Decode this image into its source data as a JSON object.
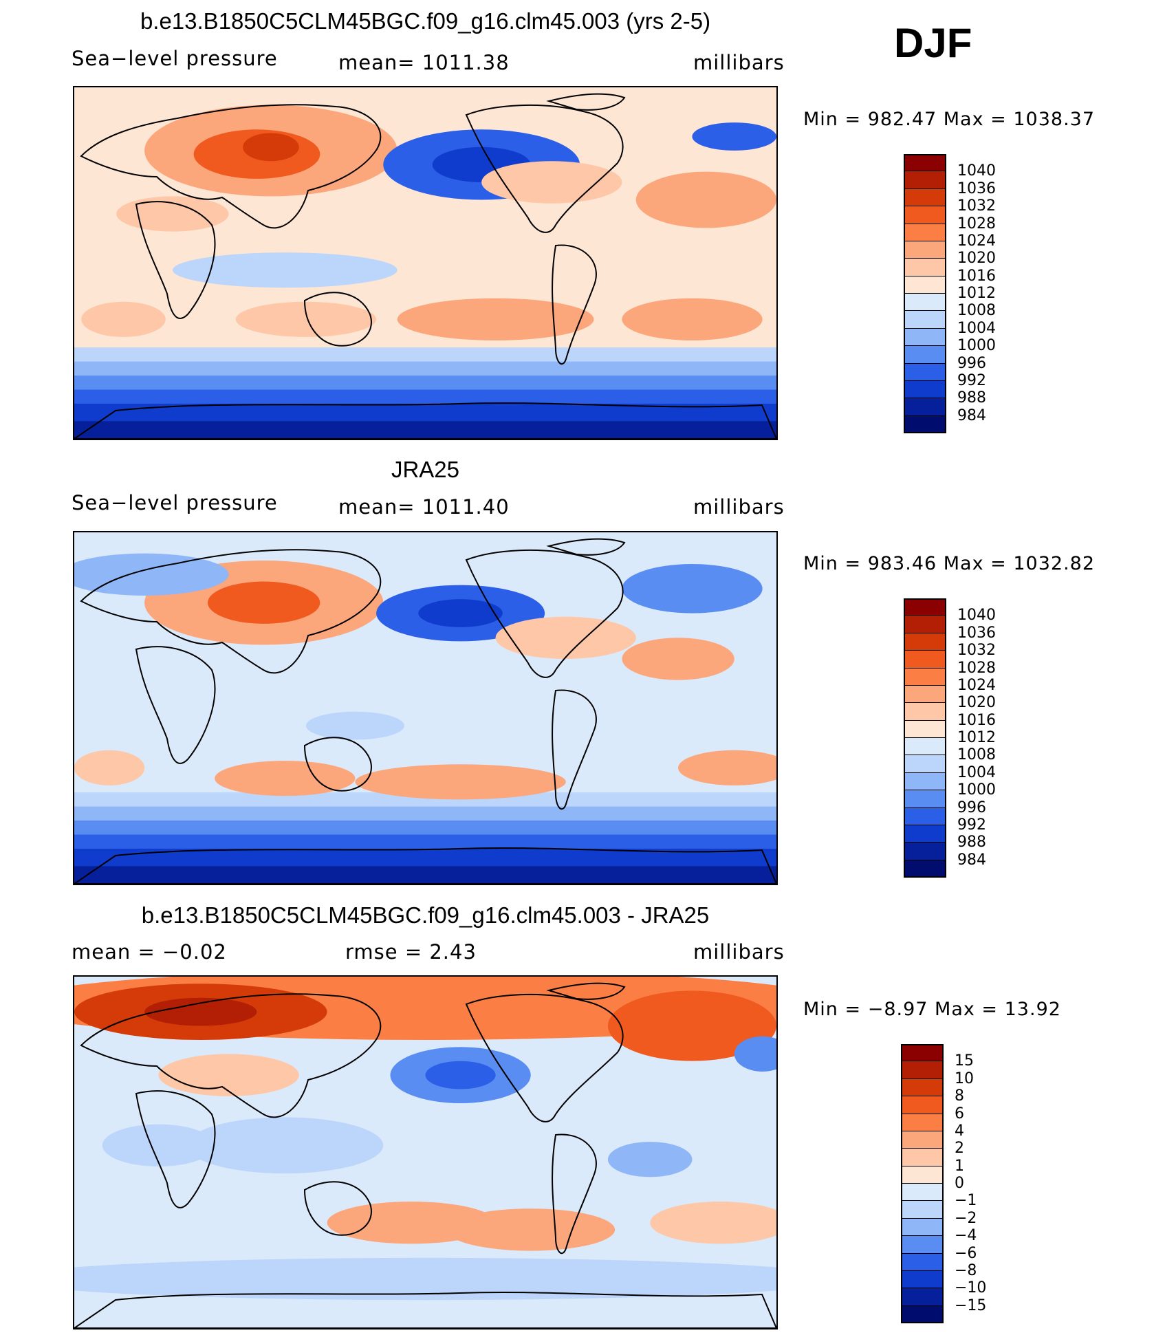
{
  "season": "DJF",
  "panels": [
    {
      "title": "b.e13.B1850C5CLM45BGC.f09_g16.clm45.003 (yrs 2-5)",
      "left_label": "Sea−level pressure",
      "center_label": "mean=  1011.38",
      "right_label": "millibars",
      "minmax": "Min  =  982.47  Max  =  1038.37"
    },
    {
      "title": "JRA25",
      "left_label": "Sea−level pressure",
      "center_label": "mean=  1011.40",
      "right_label": "millibars",
      "minmax": "Min  =  983.46  Max  =  1032.82"
    },
    {
      "title": "b.e13.B1850C5CLM45BGC.f09_g16.clm45.003 - JRA25",
      "left_label": "mean  =    −0.02",
      "center_label": "rmse  =     2.43",
      "right_label": "millibars",
      "minmax": "Min  =    −8.97  Max  =    13.92"
    }
  ],
  "chart_data": [
    {
      "type": "heatmap",
      "title": "b.e13.B1850C5CLM45BGC.f09_g16.clm45.003 (yrs 2-5)",
      "variable": "Sea-level pressure",
      "units": "millibars",
      "mean": 1011.38,
      "min": 982.47,
      "max": 1038.37,
      "levels": [
        "1040",
        "1036",
        "1032",
        "1028",
        "1024",
        "1020",
        "1016",
        "1012",
        "1008",
        "1004",
        "1000",
        "996",
        "992",
        "988",
        "984"
      ],
      "colors": [
        "#8b0000",
        "#b31f05",
        "#d43b08",
        "#f05a1e",
        "#fb7f45",
        "#fca67c",
        "#fdc7a8",
        "#fde6d4",
        "#dbeafa",
        "#bcd6fb",
        "#8fb7f8",
        "#5a8df2",
        "#2c5fe8",
        "#0f3ccc",
        "#061f9a",
        "#000c6e"
      ]
    },
    {
      "type": "heatmap",
      "title": "JRA25",
      "variable": "Sea-level pressure",
      "units": "millibars",
      "mean": 1011.4,
      "min": 983.46,
      "max": 1032.82,
      "levels": [
        "1040",
        "1036",
        "1032",
        "1028",
        "1024",
        "1020",
        "1016",
        "1012",
        "1008",
        "1004",
        "1000",
        "996",
        "992",
        "988",
        "984"
      ],
      "colors": [
        "#8b0000",
        "#b31f05",
        "#d43b08",
        "#f05a1e",
        "#fb7f45",
        "#fca67c",
        "#fdc7a8",
        "#fde6d4",
        "#dbeafa",
        "#bcd6fb",
        "#8fb7f8",
        "#5a8df2",
        "#2c5fe8",
        "#0f3ccc",
        "#061f9a",
        "#000c6e"
      ]
    },
    {
      "type": "heatmap",
      "title": "b.e13.B1850C5CLM45BGC.f09_g16.clm45.003 - JRA25",
      "variable": "Sea-level pressure difference",
      "units": "millibars",
      "mean": -0.02,
      "rmse": 2.43,
      "min": -8.97,
      "max": 13.92,
      "levels": [
        "15",
        "10",
        "8",
        "6",
        "4",
        "2",
        "1",
        "0",
        "−1",
        "−2",
        "−4",
        "−6",
        "−8",
        "−10",
        "−15"
      ],
      "colors": [
        "#8b0000",
        "#b31f05",
        "#d43b08",
        "#f05a1e",
        "#fb7f45",
        "#fca67c",
        "#fdc7a8",
        "#fde6d4",
        "#dbeafa",
        "#bcd6fb",
        "#8fb7f8",
        "#5a8df2",
        "#2c5fe8",
        "#0f3ccc",
        "#061f9a",
        "#000c6e"
      ]
    }
  ]
}
